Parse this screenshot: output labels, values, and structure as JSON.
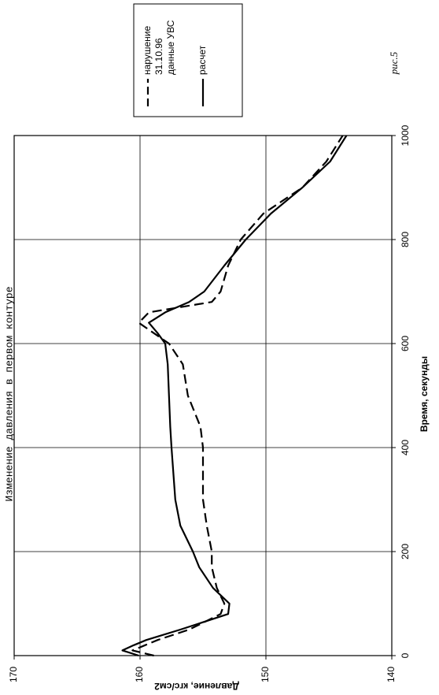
{
  "chart_data": {
    "type": "line",
    "title": "Изменение  давления   в   первом   контуре",
    "figure_label": "рис.5",
    "x_label": "Время, секунды",
    "y_label": "Давление, кгс/см2",
    "x": [
      0,
      10,
      20,
      30,
      50,
      80,
      100,
      130,
      170,
      200,
      250,
      300,
      400,
      440,
      500,
      560,
      600,
      620,
      640,
      660,
      680,
      700,
      750,
      800,
      850,
      900,
      950,
      1000
    ],
    "series": [
      {
        "name": "нарушение\n31.10.96\nданные УВС",
        "color": "#000000",
        "linestyle": "dashed",
        "values": [
          158.9,
          160.6,
          159.6,
          158.6,
          156.1,
          153.6,
          153.3,
          153.9,
          154.3,
          154.3,
          154.7,
          155.0,
          155.0,
          155.2,
          156.2,
          156.6,
          157.7,
          158.9,
          160.1,
          159.3,
          154.3,
          153.6,
          153.0,
          152.0,
          150.2,
          147.1,
          145.2,
          143.9
        ]
      },
      {
        "name": "расчет",
        "color": "#000000",
        "linestyle": "solid",
        "values": [
          160.1,
          161.4,
          160.5,
          159.5,
          156.8,
          153.0,
          152.9,
          154.2,
          155.3,
          155.8,
          156.8,
          157.2,
          157.5,
          157.6,
          157.7,
          157.8,
          158.0,
          158.6,
          159.3,
          158.0,
          156.1,
          154.9,
          153.3,
          151.6,
          149.6,
          147.1,
          144.9,
          143.6
        ]
      }
    ],
    "xlim": [
      0,
      1000
    ],
    "xticks": [
      0,
      200,
      400,
      600,
      800,
      1000
    ],
    "ylim": [
      170,
      140
    ],
    "yticks": [
      170,
      160,
      150,
      140
    ],
    "grid": true,
    "rotation": -90
  }
}
